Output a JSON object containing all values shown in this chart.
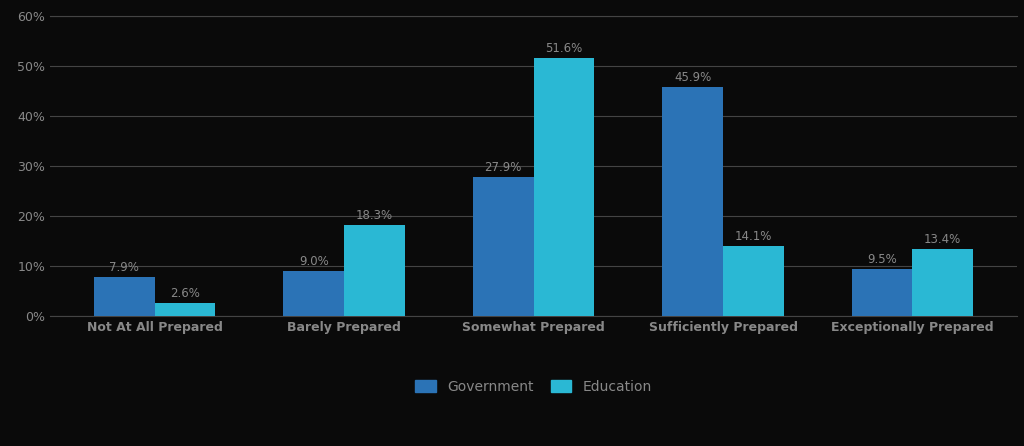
{
  "categories": [
    "Not At All Prepared",
    "Barely Prepared",
    "Somewhat Prepared",
    "Sufficiently Prepared",
    "Exceptionally Prepared"
  ],
  "government": [
    7.9,
    9.0,
    27.9,
    45.9,
    9.5
  ],
  "education": [
    2.6,
    18.3,
    51.6,
    14.1,
    13.4
  ],
  "gov_color": "#2b73b6",
  "edu_color": "#2ab8d4",
  "background_color": "#0a0a0a",
  "text_color": "#888888",
  "grid_color": "#444444",
  "ylim": [
    0,
    60
  ],
  "yticks": [
    0,
    10,
    20,
    30,
    40,
    50,
    60
  ],
  "legend_labels": [
    "Government",
    "Education"
  ],
  "bar_width": 0.32,
  "label_fontsize": 8.5,
  "tick_fontsize": 9,
  "legend_fontsize": 10,
  "xlabel_fontweight": "bold"
}
